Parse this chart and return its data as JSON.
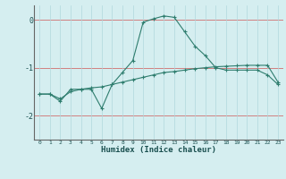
{
  "xlabel": "Humidex (Indice chaleur)",
  "x": [
    0,
    1,
    2,
    3,
    4,
    5,
    6,
    7,
    8,
    9,
    10,
    11,
    12,
    13,
    14,
    15,
    16,
    17,
    18,
    19,
    20,
    21,
    22,
    23
  ],
  "line1": [
    -1.55,
    -1.55,
    -1.7,
    -1.45,
    -1.45,
    -1.45,
    -1.85,
    -1.35,
    -1.1,
    -0.85,
    -0.05,
    0.02,
    0.08,
    0.05,
    -0.25,
    -0.55,
    -0.75,
    -1.0,
    -1.05,
    -1.05,
    -1.05,
    -1.05,
    -1.15,
    -1.35
  ],
  "line2": [
    -1.55,
    -1.55,
    -1.65,
    -1.5,
    -1.45,
    -1.42,
    -1.4,
    -1.35,
    -1.3,
    -1.25,
    -1.2,
    -1.15,
    -1.1,
    -1.08,
    -1.05,
    -1.02,
    -1.0,
    -0.98,
    -0.97,
    -0.96,
    -0.95,
    -0.95,
    -0.95,
    -1.3
  ],
  "line_color": "#2e7d6e",
  "bg_color": "#d5eef0",
  "grid_h_color": "#d08080",
  "grid_v_color": "#b0d8dc",
  "ylim": [
    -2.5,
    0.3
  ],
  "xlim": [
    -0.5,
    23.5
  ],
  "yticks": [
    0,
    -1,
    -2
  ],
  "xticks": [
    0,
    1,
    2,
    3,
    4,
    5,
    6,
    7,
    8,
    9,
    10,
    11,
    12,
    13,
    14,
    15,
    16,
    17,
    18,
    19,
    20,
    21,
    22,
    23
  ]
}
